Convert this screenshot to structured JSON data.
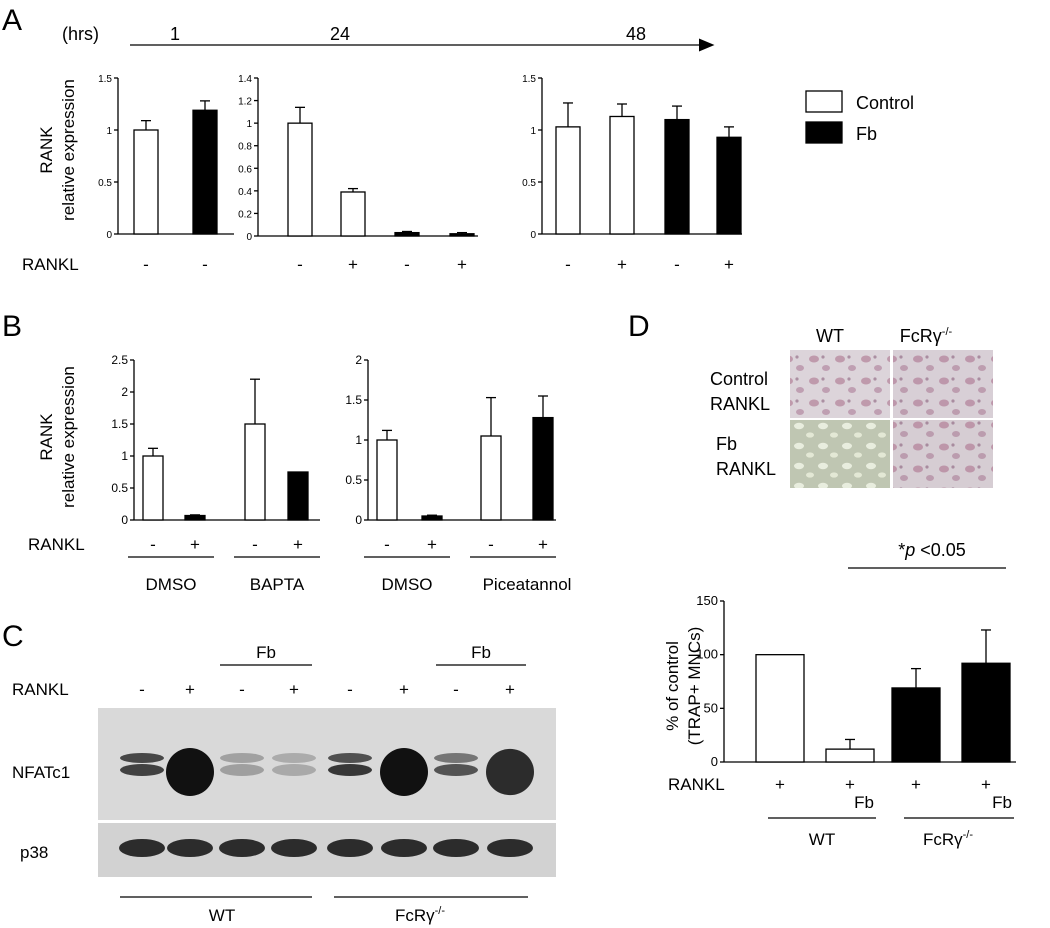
{
  "panels": {
    "A": "A",
    "B": "B",
    "C": "C",
    "D": "D"
  },
  "panelA": {
    "timeline": {
      "unit": "(hrs)",
      "points": [
        "1",
        "24",
        "48"
      ]
    },
    "ylabel_top": "RANK",
    "ylabel_bottom": "relative expression",
    "rowlabel": "RANKL",
    "legend": {
      "control": "Control",
      "fb": "Fb"
    }
  },
  "panelB": {
    "ylabel_top": "RANK",
    "ylabel_bottom": "relative expression",
    "rowlabel": "RANKL",
    "groups": [
      "DMSO",
      "BAPTA",
      "DMSO",
      "Piceatannol"
    ]
  },
  "panelC": {
    "rowlabel": "RANKL",
    "fb": "Fb",
    "bands": [
      "NFATc1",
      "p38"
    ],
    "groups": [
      "WT",
      "FcRγ"
    ],
    "signs": [
      "-",
      "+",
      "-",
      "+",
      "-",
      "+",
      "-",
      "+"
    ],
    "superscript": "-/-"
  },
  "panelD": {
    "cols": [
      "WT",
      "FcRγ"
    ],
    "superscript": "-/-",
    "rows": [
      [
        "Control",
        "RANKL"
      ],
      [
        "Fb",
        "RANKL"
      ]
    ],
    "sig_star": "*",
    "sig_p": "p",
    "sig_rest": " <0.05",
    "ylabel_top": "% of control",
    "ylabel_bottom": "(TRAP+ MNCs)",
    "rowlabel": "RANKL",
    "fb": "Fb",
    "groups": [
      "WT",
      "FcRγ"
    ]
  },
  "colors": {
    "control": "#ffffff",
    "fb": "#000000",
    "blot_bg": "#d9d9d9",
    "band": "#1a1a1a"
  },
  "chart_data": [
    {
      "id": "A1",
      "type": "bar",
      "categories": [
        "Control",
        "Fb"
      ],
      "values": [
        1.0,
        1.19
      ],
      "errors": [
        0.09,
        0.09
      ],
      "fills": [
        "control",
        "fb"
      ],
      "rankl": [
        "-",
        "-"
      ],
      "ylim": [
        0,
        1.5
      ],
      "yticks": [
        "0",
        "0.5",
        "1",
        "1.5"
      ],
      "yticks_v": [
        0,
        0.5,
        1,
        1.5
      ]
    },
    {
      "id": "A2",
      "type": "bar",
      "categories": [
        "Control -",
        "Control +",
        "Fb -",
        "Fb +"
      ],
      "values": [
        1.0,
        0.39,
        0.03,
        0.02
      ],
      "errors": [
        0.14,
        0.03,
        0.01,
        0.01
      ],
      "fills": [
        "control",
        "control",
        "fb",
        "fb"
      ],
      "rankl": [
        "-",
        "+",
        "-",
        "+"
      ],
      "ylim": [
        0,
        1.4
      ],
      "yticks": [
        "0",
        "0.2",
        "0.4",
        "0.6",
        "0.8",
        "1",
        "1.2",
        "1.4"
      ],
      "yticks_v": [
        0,
        0.2,
        0.4,
        0.6,
        0.8,
        1,
        1.2,
        1.4
      ]
    },
    {
      "id": "A3",
      "type": "bar",
      "categories": [
        "Control -",
        "Control +",
        "Fb -",
        "Fb +"
      ],
      "values": [
        1.03,
        1.13,
        1.1,
        0.93
      ],
      "errors": [
        0.23,
        0.12,
        0.13,
        0.1
      ],
      "fills": [
        "control",
        "control",
        "fb",
        "fb"
      ],
      "rankl": [
        "-",
        "+",
        "-",
        "+"
      ],
      "ylim": [
        0,
        1.5
      ],
      "yticks": [
        "0",
        "0.5",
        "1",
        "1.5"
      ],
      "yticks_v": [
        0,
        0.5,
        1,
        1.5
      ]
    },
    {
      "id": "B1",
      "type": "bar",
      "categories": [
        "DMSO -",
        "DMSO +",
        "BAPTA -",
        "BAPTA +"
      ],
      "values": [
        1.0,
        0.07,
        1.5,
        0.75
      ],
      "errors": [
        0.12,
        0.01,
        0.7,
        0.0
      ],
      "fills": [
        "control",
        "fb",
        "control",
        "fb"
      ],
      "rankl": [
        "-",
        "+",
        "-",
        "+"
      ],
      "ylim": [
        0,
        2.5
      ],
      "yticks": [
        "0",
        "0.5",
        "1",
        "1.5",
        "2",
        "2.5"
      ],
      "yticks_v": [
        0,
        0.5,
        1,
        1.5,
        2,
        2.5
      ]
    },
    {
      "id": "B2",
      "type": "bar",
      "categories": [
        "DMSO -",
        "DMSO +",
        "Piceatannol -",
        "Piceatannol +"
      ],
      "values": [
        1.0,
        0.05,
        1.05,
        1.28
      ],
      "errors": [
        0.12,
        0.01,
        0.48,
        0.27
      ],
      "fills": [
        "control",
        "fb",
        "control",
        "fb"
      ],
      "rankl": [
        "-",
        "+",
        "-",
        "+"
      ],
      "ylim": [
        0,
        2
      ],
      "yticks": [
        "0",
        "0.5",
        "1",
        "1.5",
        "2"
      ],
      "yticks_v": [
        0,
        0.5,
        1,
        1.5,
        2
      ]
    },
    {
      "id": "D",
      "type": "bar",
      "categories": [
        "WT",
        "WT Fb",
        "FcRγ-/-",
        "FcRγ-/- Fb"
      ],
      "values": [
        100,
        12,
        69,
        92
      ],
      "errors": [
        0,
        9,
        18,
        31
      ],
      "fills": [
        "control",
        "control",
        "fb",
        "fb"
      ],
      "rankl": [
        "+",
        "+",
        "+",
        "+"
      ],
      "ylim": [
        0,
        150
      ],
      "yticks": [
        "0",
        "50",
        "100",
        "150"
      ],
      "yticks_v": [
        0,
        50,
        100,
        150
      ]
    }
  ]
}
